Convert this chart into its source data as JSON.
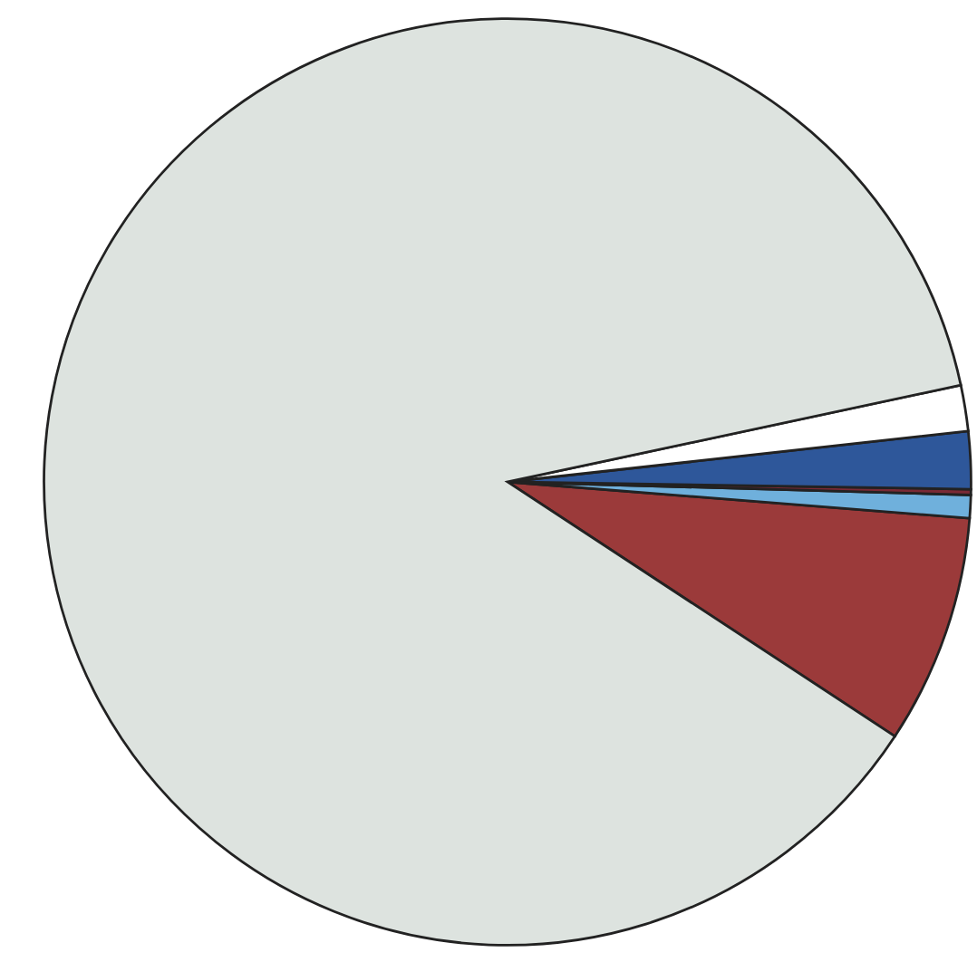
{
  "chart_data": {
    "type": "pie",
    "categories": [
      null,
      null,
      null,
      null,
      null,
      null
    ],
    "values": [
      8.0,
      0.8,
      0.2,
      2.0,
      1.6,
      87.4
    ],
    "colors": [
      "#9b3a3a",
      "#6fb0dc",
      "#7a2a35",
      "#2e579a",
      "#ffffff",
      "#dde3df"
    ]
  }
}
